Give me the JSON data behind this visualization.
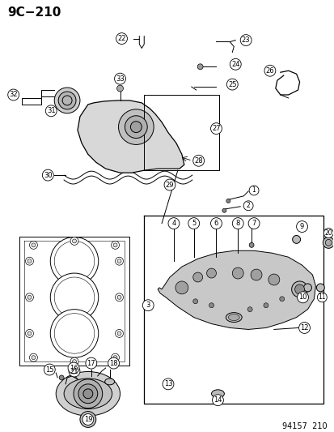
{
  "title": "9C−210",
  "footer": "94157  210",
  "bg_color": "#ffffff",
  "title_fontsize": 11,
  "footer_fontsize": 7
}
